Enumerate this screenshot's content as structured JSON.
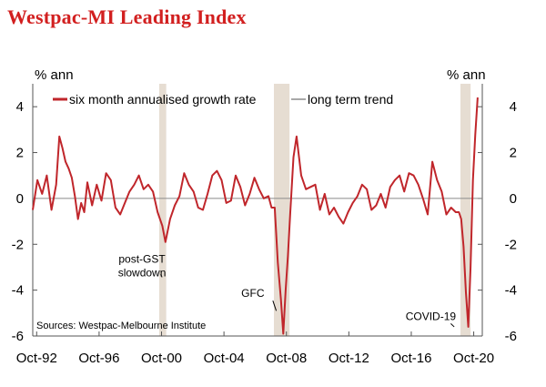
{
  "title": "Westpac-MI Leading Index",
  "chart_data": {
    "type": "line",
    "title": "Westpac-MI Leading Index",
    "unit_left": "% ann",
    "unit_right": "% ann",
    "source": "Sources: Westpac-Melbourne Institute",
    "ylim": [
      -6,
      5
    ],
    "y_ticks": [
      4,
      2,
      0,
      -2,
      -4,
      -6
    ],
    "y_tick_labels": [
      "4",
      "2",
      "0",
      "-2",
      "-4",
      "-6"
    ],
    "x_range": [
      1992.5,
      2021.3
    ],
    "x_ticks": [
      1992.75,
      1996.75,
      2000.75,
      2004.75,
      2008.75,
      2012.75,
      2016.75,
      2020.75
    ],
    "x_tick_labels": [
      "Oct-92",
      "Oct-96",
      "Oct-00",
      "Oct-04",
      "Oct-08",
      "Oct-12",
      "Oct-16",
      "Oct-20"
    ],
    "grid": false,
    "legend_position": "top",
    "shaded_periods": [
      [
        2000.6,
        2001.05
      ],
      [
        2007.95,
        2008.95
      ],
      [
        2019.9,
        2020.55
      ]
    ],
    "annotations": [
      {
        "text": "post-GST",
        "x": 1999.5,
        "y": -2.8,
        "arrow_to": [
          2000.7,
          -3.3
        ]
      },
      {
        "text": "slowdown",
        "x": 1999.5,
        "y": -3.4
      },
      {
        "text": "GFC",
        "x": 2006.6,
        "y": -4.3,
        "arrow_to": [
          2008.1,
          -4.9
        ]
      },
      {
        "text": "COVID-19",
        "x": 2018.0,
        "y": -5.3,
        "arrow_to": [
          2019.5,
          -5.6
        ]
      }
    ],
    "series": [
      {
        "name": "six month annualised growth rate",
        "color": "#c0262b",
        "x": [
          1992.5,
          1992.8,
          1993.1,
          1993.4,
          1993.7,
          1994.0,
          1994.2,
          1994.4,
          1994.6,
          1994.8,
          1995.0,
          1995.2,
          1995.4,
          1995.6,
          1995.8,
          1996.0,
          1996.3,
          1996.6,
          1996.9,
          1997.2,
          1997.5,
          1997.8,
          1998.1,
          1998.4,
          1998.7,
          1999.0,
          1999.3,
          1999.6,
          1999.9,
          2000.2,
          2000.5,
          2000.8,
          2001.0,
          2001.3,
          2001.6,
          2001.9,
          2002.2,
          2002.5,
          2002.8,
          2003.1,
          2003.4,
          2003.7,
          2004.0,
          2004.3,
          2004.6,
          2004.9,
          2005.2,
          2005.5,
          2005.8,
          2006.1,
          2006.4,
          2006.7,
          2007.0,
          2007.3,
          2007.6,
          2007.8,
          2008.0,
          2008.2,
          2008.4,
          2008.55,
          2008.7,
          2008.85,
          2009.0,
          2009.2,
          2009.4,
          2009.7,
          2010.0,
          2010.3,
          2010.6,
          2010.9,
          2011.2,
          2011.5,
          2011.8,
          2012.1,
          2012.4,
          2012.7,
          2013.0,
          2013.3,
          2013.6,
          2013.9,
          2014.2,
          2014.5,
          2014.8,
          2015.1,
          2015.4,
          2015.7,
          2016.0,
          2016.3,
          2016.6,
          2016.9,
          2017.2,
          2017.5,
          2017.8,
          2018.1,
          2018.4,
          2018.7,
          2019.0,
          2019.3,
          2019.6,
          2019.8,
          2019.95,
          2020.1,
          2020.25,
          2020.4,
          2020.55,
          2020.7,
          2020.85,
          2021.0
        ],
        "values": [
          -0.5,
          0.8,
          0.2,
          1.0,
          -0.5,
          0.6,
          2.7,
          2.2,
          1.6,
          1.3,
          0.9,
          0.1,
          -0.9,
          -0.2,
          -0.6,
          0.7,
          -0.3,
          0.6,
          -0.1,
          1.1,
          0.8,
          -0.4,
          -0.7,
          -0.2,
          0.3,
          0.6,
          1.0,
          0.4,
          0.6,
          0.3,
          -0.6,
          -1.2,
          -1.9,
          -0.9,
          -0.3,
          0.1,
          1.1,
          0.6,
          0.3,
          -0.4,
          -0.5,
          0.2,
          1.0,
          1.2,
          0.8,
          -0.2,
          -0.1,
          1.0,
          0.5,
          -0.3,
          0.2,
          0.9,
          0.4,
          0.0,
          0.1,
          -0.4,
          -0.4,
          -2.8,
          -4.4,
          -5.9,
          -4.0,
          -2.5,
          -0.6,
          1.8,
          2.7,
          1.0,
          0.4,
          0.5,
          0.6,
          -0.5,
          0.2,
          -0.7,
          -0.4,
          -0.8,
          -1.1,
          -0.6,
          -0.2,
          0.1,
          0.6,
          0.4,
          -0.5,
          -0.3,
          0.2,
          -0.4,
          0.5,
          0.8,
          1.0,
          0.3,
          1.1,
          1.0,
          0.6,
          0.0,
          -0.7,
          1.6,
          0.8,
          0.3,
          -0.7,
          -0.4,
          -0.6,
          -0.6,
          -0.9,
          -2.1,
          -4.1,
          -5.6,
          -3.0,
          0.8,
          2.8,
          4.4
        ]
      },
      {
        "name": "long term trend",
        "color": "#a8a8a8",
        "values": []
      }
    ]
  }
}
